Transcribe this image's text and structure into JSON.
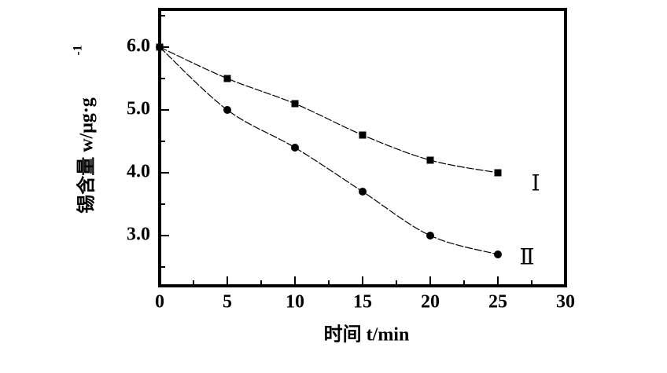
{
  "chart_data": {
    "type": "line",
    "x_label": "时间 t/min",
    "y_label": "锡含量 w/μg·g",
    "y_label_superscript": "-1",
    "x": [
      0,
      5,
      10,
      15,
      20,
      25
    ],
    "series": [
      {
        "name": "Ⅰ",
        "color": "#000000",
        "marker": "square",
        "values": [
          6.0,
          5.5,
          5.1,
          4.6,
          4.2,
          4.0
        ]
      },
      {
        "name": "Ⅱ",
        "color": "#000000",
        "marker": "circle",
        "values": [
          6.0,
          5.0,
          4.4,
          3.7,
          3.0,
          2.7
        ]
      }
    ],
    "xlim": [
      0,
      30
    ],
    "xticks": [
      0,
      5,
      10,
      15,
      20,
      25,
      30
    ],
    "xminorticks": [
      2.5,
      7.5,
      12.5,
      17.5,
      22.5,
      27.5
    ],
    "ylim": [
      2.2,
      6.6
    ],
    "yticks": [
      {
        "value": 3,
        "label": "3.0"
      },
      {
        "value": 4,
        "label": "4.0"
      },
      {
        "value": 5,
        "label": "5.0"
      },
      {
        "value": 6,
        "label": "6.0"
      }
    ],
    "yminorticks": [
      2.5,
      3.5,
      4.5,
      5.5,
      6.5
    ],
    "grid": false
  }
}
